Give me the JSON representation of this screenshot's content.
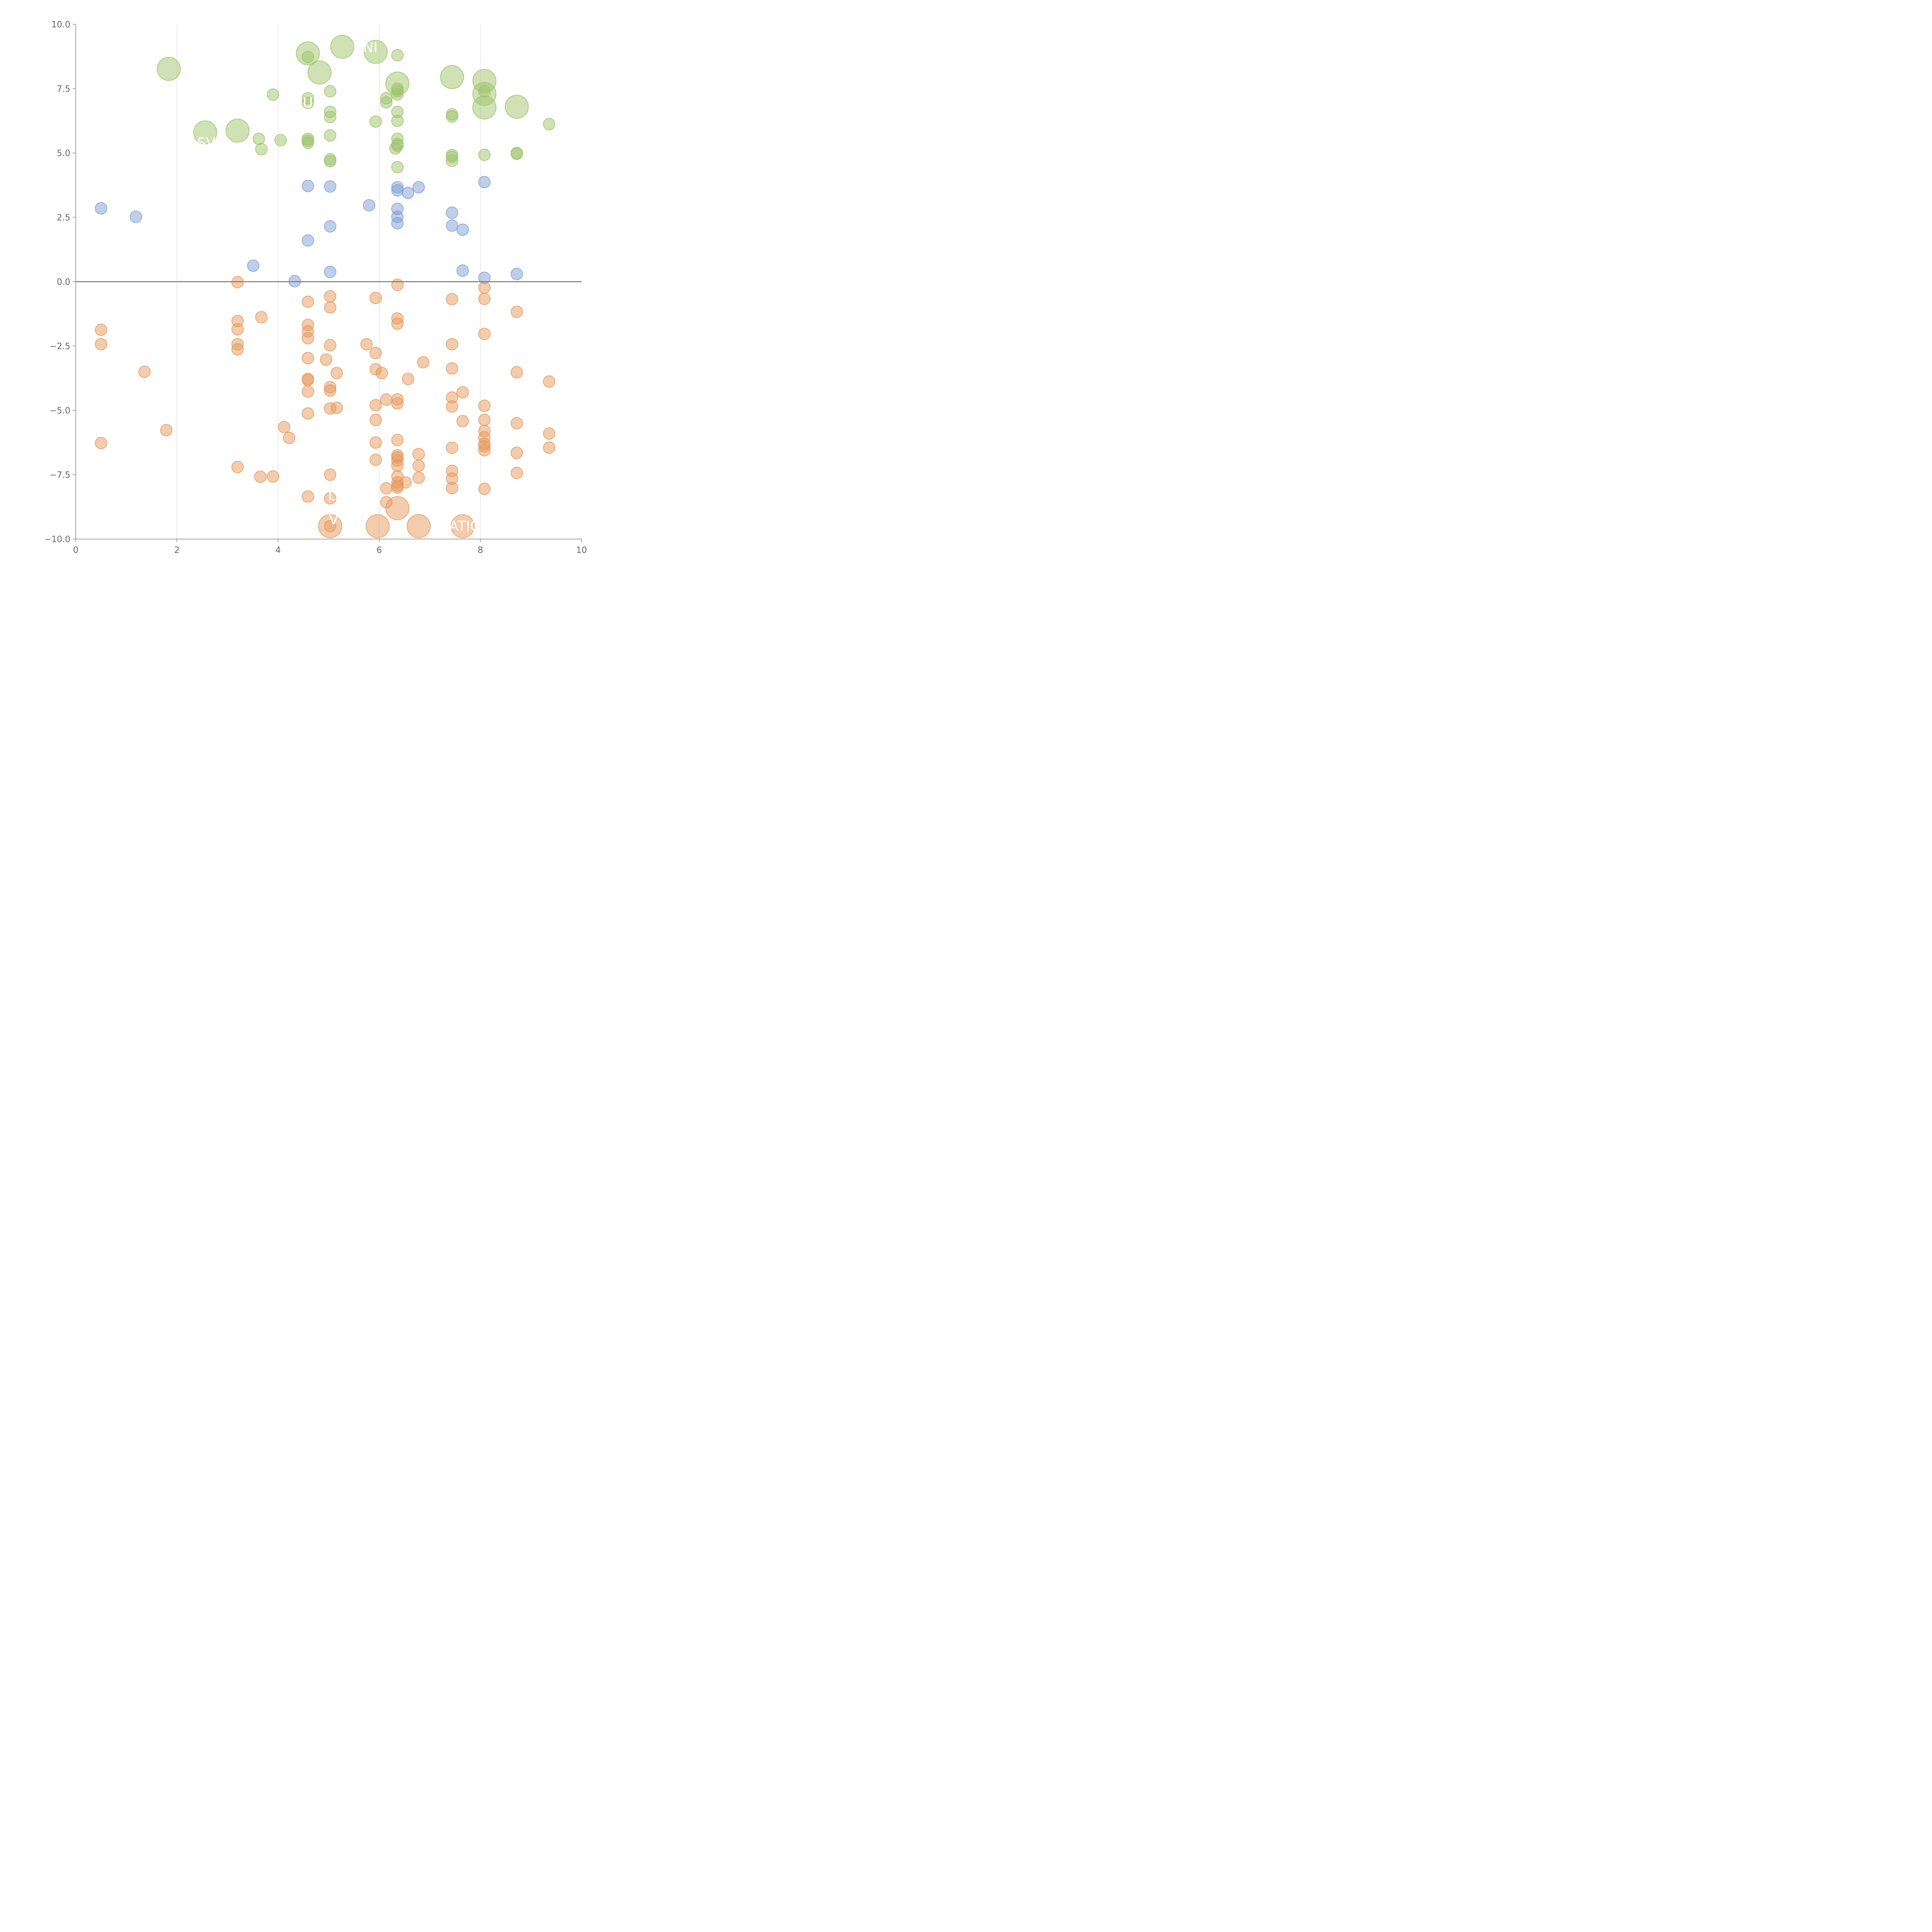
{
  "chart_data": {
    "type": "scatter",
    "title": "",
    "xlabel": "",
    "ylabel": "",
    "xlim": [
      0,
      10
    ],
    "ylim": [
      -10,
      10
    ],
    "xticks": [
      "0",
      "2",
      "4",
      "6",
      "8",
      "10"
    ],
    "yticks": [
      "−10.0",
      "−7.5",
      "−5.0",
      "−2.5",
      "0.0",
      "2.5",
      "5.0",
      "7.5",
      "10.0"
    ],
    "grid": "vertical",
    "zero_line": true,
    "legend": "none",
    "colors": {
      "green": "#9fc46b",
      "blue": "#7f9fd4",
      "orange": "#e59a5c"
    },
    "series": [
      {
        "color": "green",
        "points": [
          [
            1.84,
            8.27,
            2
          ],
          [
            4.59,
            8.87,
            2
          ],
          [
            5.27,
            9.13,
            2
          ],
          [
            5.93,
            8.93,
            2
          ],
          [
            4.82,
            8.13,
            2
          ],
          [
            6.36,
            7.7,
            2
          ],
          [
            7.44,
            7.95,
            2
          ],
          [
            8.08,
            7.8,
            2
          ],
          [
            8.08,
            7.3,
            2
          ],
          [
            8.08,
            6.77,
            2
          ],
          [
            8.72,
            6.8,
            2
          ],
          [
            2.56,
            5.8,
            2
          ],
          [
            3.2,
            5.87,
            2
          ],
          [
            6.36,
            8.8,
            1
          ],
          [
            4.59,
            8.73,
            1
          ],
          [
            3.9,
            7.27,
            1
          ],
          [
            4.59,
            7.13,
            1
          ],
          [
            4.59,
            6.95,
            1
          ],
          [
            5.03,
            7.4,
            1
          ],
          [
            5.03,
            6.6,
            1
          ],
          [
            5.03,
            6.4,
            1
          ],
          [
            5.03,
            5.68,
            1
          ],
          [
            5.03,
            4.75,
            1
          ],
          [
            5.03,
            4.68,
            1
          ],
          [
            5.93,
            6.22,
            1
          ],
          [
            6.14,
            7.13,
            1
          ],
          [
            6.14,
            6.97,
            1
          ],
          [
            6.36,
            7.5,
            1
          ],
          [
            6.36,
            7.4,
            1
          ],
          [
            6.36,
            7.28,
            1
          ],
          [
            6.36,
            6.6,
            1
          ],
          [
            6.36,
            6.25,
            1
          ],
          [
            6.36,
            5.55,
            1
          ],
          [
            6.36,
            5.35,
            1
          ],
          [
            6.36,
            5.28,
            1
          ],
          [
            6.32,
            5.18,
            1
          ],
          [
            6.36,
            4.45,
            1
          ],
          [
            3.62,
            5.55,
            1
          ],
          [
            3.67,
            5.15,
            1
          ],
          [
            4.05,
            5.5,
            1
          ],
          [
            4.59,
            5.55,
            1
          ],
          [
            4.59,
            5.48,
            1
          ],
          [
            4.59,
            5.4,
            1
          ],
          [
            7.44,
            6.5,
            1
          ],
          [
            7.44,
            6.42,
            1
          ],
          [
            7.44,
            4.92,
            1
          ],
          [
            7.44,
            4.85,
            1
          ],
          [
            7.44,
            4.7,
            1
          ],
          [
            8.08,
            7.4,
            1
          ],
          [
            8.08,
            4.93,
            1
          ],
          [
            8.72,
            5.0,
            1
          ],
          [
            8.72,
            4.97,
            1
          ],
          [
            9.36,
            6.12,
            1
          ]
        ]
      },
      {
        "color": "blue",
        "points": [
          [
            0.5,
            2.85,
            1
          ],
          [
            1.19,
            2.52,
            1
          ],
          [
            3.51,
            0.62,
            1
          ],
          [
            4.33,
            0.02,
            1
          ],
          [
            4.59,
            3.72,
            1
          ],
          [
            4.59,
            1.6,
            1
          ],
          [
            5.03,
            3.7,
            1
          ],
          [
            5.03,
            2.15,
            1
          ],
          [
            5.03,
            0.38,
            1
          ],
          [
            5.8,
            2.97,
            1
          ],
          [
            6.36,
            3.67,
            1
          ],
          [
            6.36,
            3.55,
            1
          ],
          [
            6.36,
            2.83,
            1
          ],
          [
            6.36,
            2.52,
            1
          ],
          [
            6.36,
            2.27,
            1
          ],
          [
            6.57,
            3.45,
            1
          ],
          [
            6.78,
            3.67,
            1
          ],
          [
            7.44,
            2.68,
            1
          ],
          [
            7.44,
            2.18,
            1
          ],
          [
            7.65,
            2.02,
            1
          ],
          [
            7.65,
            0.43,
            1
          ],
          [
            8.08,
            3.87,
            1
          ],
          [
            8.08,
            0.15,
            1
          ],
          [
            8.72,
            0.3,
            1
          ]
        ]
      },
      {
        "color": "orange",
        "points": [
          [
            0.5,
            -1.87,
            1
          ],
          [
            0.5,
            -2.43,
            1
          ],
          [
            0.5,
            -6.27,
            1
          ],
          [
            1.36,
            -3.5,
            1
          ],
          [
            1.79,
            -5.77,
            1
          ],
          [
            3.2,
            -0.02,
            1
          ],
          [
            3.2,
            -1.53,
            1
          ],
          [
            3.2,
            -1.85,
            1
          ],
          [
            3.2,
            -2.43,
            1
          ],
          [
            3.2,
            -2.63,
            1
          ],
          [
            3.2,
            -7.2,
            1
          ],
          [
            3.67,
            -1.38,
            1
          ],
          [
            3.65,
            -7.58,
            1
          ],
          [
            3.9,
            -7.57,
            1
          ],
          [
            4.12,
            -5.65,
            1
          ],
          [
            4.22,
            -6.07,
            1
          ],
          [
            4.59,
            -0.78,
            1
          ],
          [
            4.59,
            -1.68,
            1
          ],
          [
            4.59,
            -1.93,
            1
          ],
          [
            4.59,
            -2.2,
            1
          ],
          [
            4.59,
            -2.97,
            1
          ],
          [
            4.59,
            -3.78,
            1
          ],
          [
            4.59,
            -3.82,
            1
          ],
          [
            4.59,
            -4.27,
            1
          ],
          [
            4.59,
            -5.12,
            1
          ],
          [
            4.59,
            -8.35,
            1
          ],
          [
            5.03,
            -0.57,
            1
          ],
          [
            5.03,
            -1.0,
            1
          ],
          [
            5.03,
            -2.47,
            1
          ],
          [
            4.95,
            -3.03,
            1
          ],
          [
            5.03,
            -4.1,
            1
          ],
          [
            5.03,
            -4.23,
            1
          ],
          [
            5.03,
            -4.93,
            1
          ],
          [
            5.03,
            -7.5,
            1
          ],
          [
            5.03,
            -8.42,
            1
          ],
          [
            5.03,
            -9.5,
            1
          ],
          [
            5.16,
            -3.55,
            1
          ],
          [
            5.16,
            -4.9,
            1
          ],
          [
            5.75,
            -2.43,
            1
          ],
          [
            5.93,
            -0.63,
            1
          ],
          [
            5.93,
            -2.77,
            1
          ],
          [
            5.93,
            -3.4,
            1
          ],
          [
            6.05,
            -3.55,
            1
          ],
          [
            5.93,
            -4.8,
            1
          ],
          [
            5.93,
            -5.37,
            1
          ],
          [
            5.93,
            -6.25,
            1
          ],
          [
            5.93,
            -6.92,
            1
          ],
          [
            6.14,
            -4.58,
            1
          ],
          [
            6.14,
            -8.03,
            1
          ],
          [
            6.14,
            -8.57,
            1
          ],
          [
            6.36,
            -0.12,
            1
          ],
          [
            6.36,
            -1.43,
            1
          ],
          [
            6.36,
            -1.63,
            1
          ],
          [
            6.36,
            -4.57,
            1
          ],
          [
            6.36,
            -4.73,
            1
          ],
          [
            6.36,
            -6.15,
            1
          ],
          [
            6.36,
            -6.75,
            1
          ],
          [
            6.36,
            -6.83,
            1
          ],
          [
            6.36,
            -6.95,
            1
          ],
          [
            6.36,
            -7.15,
            1
          ],
          [
            6.36,
            -7.57,
            1
          ],
          [
            6.36,
            -7.8,
            1
          ],
          [
            6.36,
            -7.93,
            1
          ],
          [
            6.36,
            -8.0,
            1
          ],
          [
            6.52,
            -7.8,
            1
          ],
          [
            6.57,
            -3.78,
            1
          ],
          [
            6.78,
            -6.7,
            1
          ],
          [
            6.78,
            -7.15,
            1
          ],
          [
            6.78,
            -7.62,
            1
          ],
          [
            6.87,
            -3.13,
            1
          ],
          [
            7.44,
            -0.68,
            1
          ],
          [
            7.44,
            -2.43,
            1
          ],
          [
            7.44,
            -3.37,
            1
          ],
          [
            7.44,
            -4.5,
            1
          ],
          [
            7.44,
            -4.85,
            1
          ],
          [
            7.44,
            -6.45,
            1
          ],
          [
            7.44,
            -7.35,
            1
          ],
          [
            7.44,
            -7.65,
            1
          ],
          [
            7.44,
            -8.02,
            1
          ],
          [
            7.65,
            -4.3,
            1
          ],
          [
            7.65,
            -5.42,
            1
          ],
          [
            8.08,
            -0.23,
            1
          ],
          [
            8.08,
            -0.67,
            1
          ],
          [
            8.08,
            -2.03,
            1
          ],
          [
            8.08,
            -4.82,
            1
          ],
          [
            8.08,
            -5.37,
            1
          ],
          [
            8.08,
            -5.8,
            1
          ],
          [
            8.08,
            -6.05,
            1
          ],
          [
            8.08,
            -6.3,
            1
          ],
          [
            8.08,
            -6.4,
            1
          ],
          [
            8.08,
            -6.55,
            1
          ],
          [
            8.08,
            -8.05,
            1
          ],
          [
            8.72,
            -1.17,
            1
          ],
          [
            8.72,
            -3.52,
            1
          ],
          [
            8.72,
            -5.5,
            1
          ],
          [
            8.72,
            -6.65,
            1
          ],
          [
            8.72,
            -7.43,
            1
          ],
          [
            9.36,
            -3.88,
            1
          ],
          [
            9.36,
            -5.9,
            1
          ],
          [
            9.36,
            -6.45,
            1
          ],
          [
            6.36,
            -8.8,
            2
          ],
          [
            5.03,
            -9.5,
            2
          ],
          [
            5.97,
            -9.5,
            2
          ],
          [
            6.78,
            -9.5,
            2
          ],
          [
            7.65,
            -9.5,
            2
          ]
        ]
      }
    ],
    "annotations": [
      {
        "text": "UNI",
        "x": 5.48,
        "y": 9.1,
        "anchor": "start"
      },
      {
        "text": "U",
        "x": 4.59,
        "y": 6.95,
        "anchor": "middle"
      },
      {
        "text": "SV",
        "x": 2.58,
        "y": 5.4,
        "anchor": "middle"
      },
      {
        "text": "LE",
        "x": 5.15,
        "y": -8.3,
        "anchor": "middle"
      },
      {
        "text": "V",
        "x": 5.1,
        "y": -9.25,
        "anchor": "middle"
      },
      {
        "text": "ATIO",
        "x": 7.38,
        "y": -9.5,
        "anchor": "start"
      }
    ]
  }
}
